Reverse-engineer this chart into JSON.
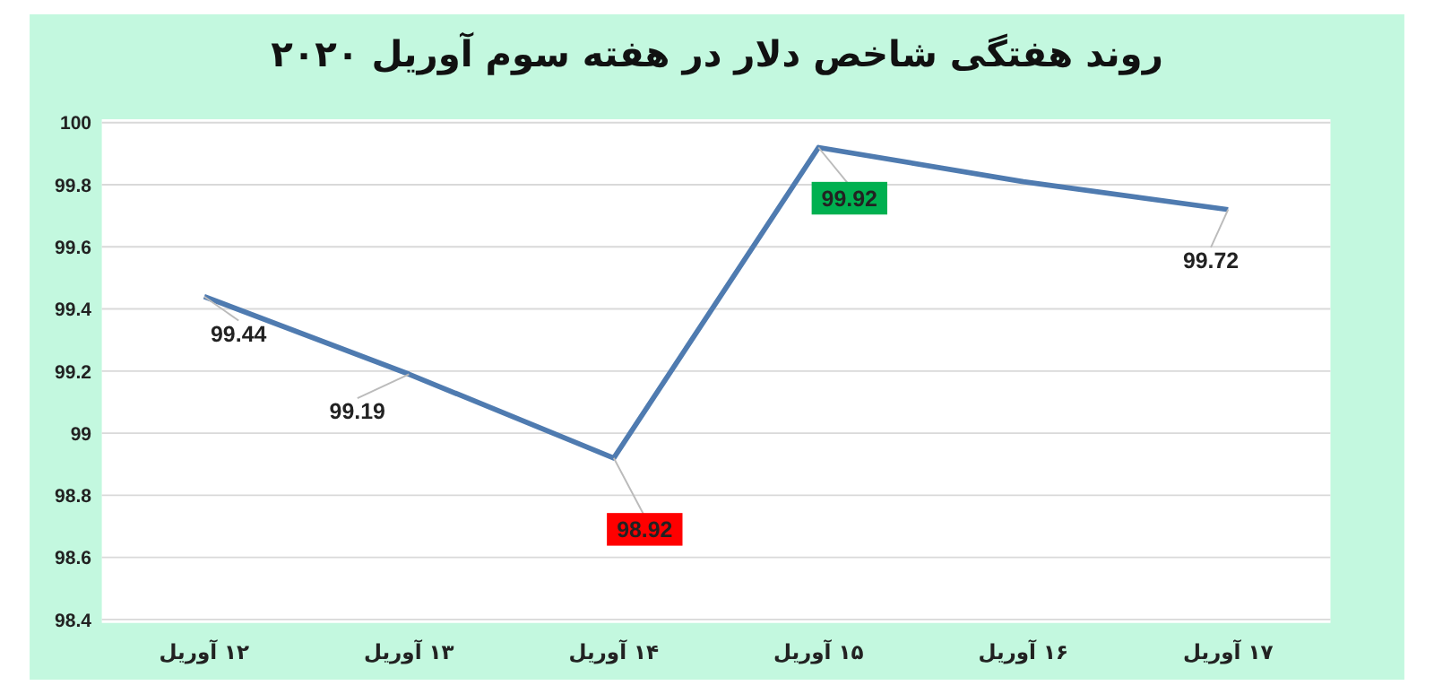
{
  "chart_data": {
    "type": "line",
    "title": "روند هفتگی شاخص دلار در هفته سوم آوریل ۲۰۲۰",
    "categories": [
      "۱۲ آوریل",
      "۱۳ آوریل",
      "۱۴ آوریل",
      "۱۵ آوریل",
      "۱۶ آوریل",
      "۱۷ آوریل"
    ],
    "series": [
      {
        "color": "#4f7bb0",
        "values": [
          99.44,
          99.19,
          98.92,
          99.92,
          99.81,
          99.72
        ],
        "value_labels": [
          "99.44",
          "99.19",
          "98.92",
          "99.92",
          null,
          "99.72"
        ],
        "colors": [
          null,
          null,
          "#ff0000",
          "#00b050",
          null,
          null
        ]
      }
    ],
    "ylim": [
      98.4,
      100
    ],
    "yticks": [
      98.4,
      98.6,
      98.8,
      99,
      99.2,
      99.4,
      99.6,
      99.8,
      100
    ],
    "grid": "y",
    "marker": "none",
    "line_style": "solid"
  }
}
